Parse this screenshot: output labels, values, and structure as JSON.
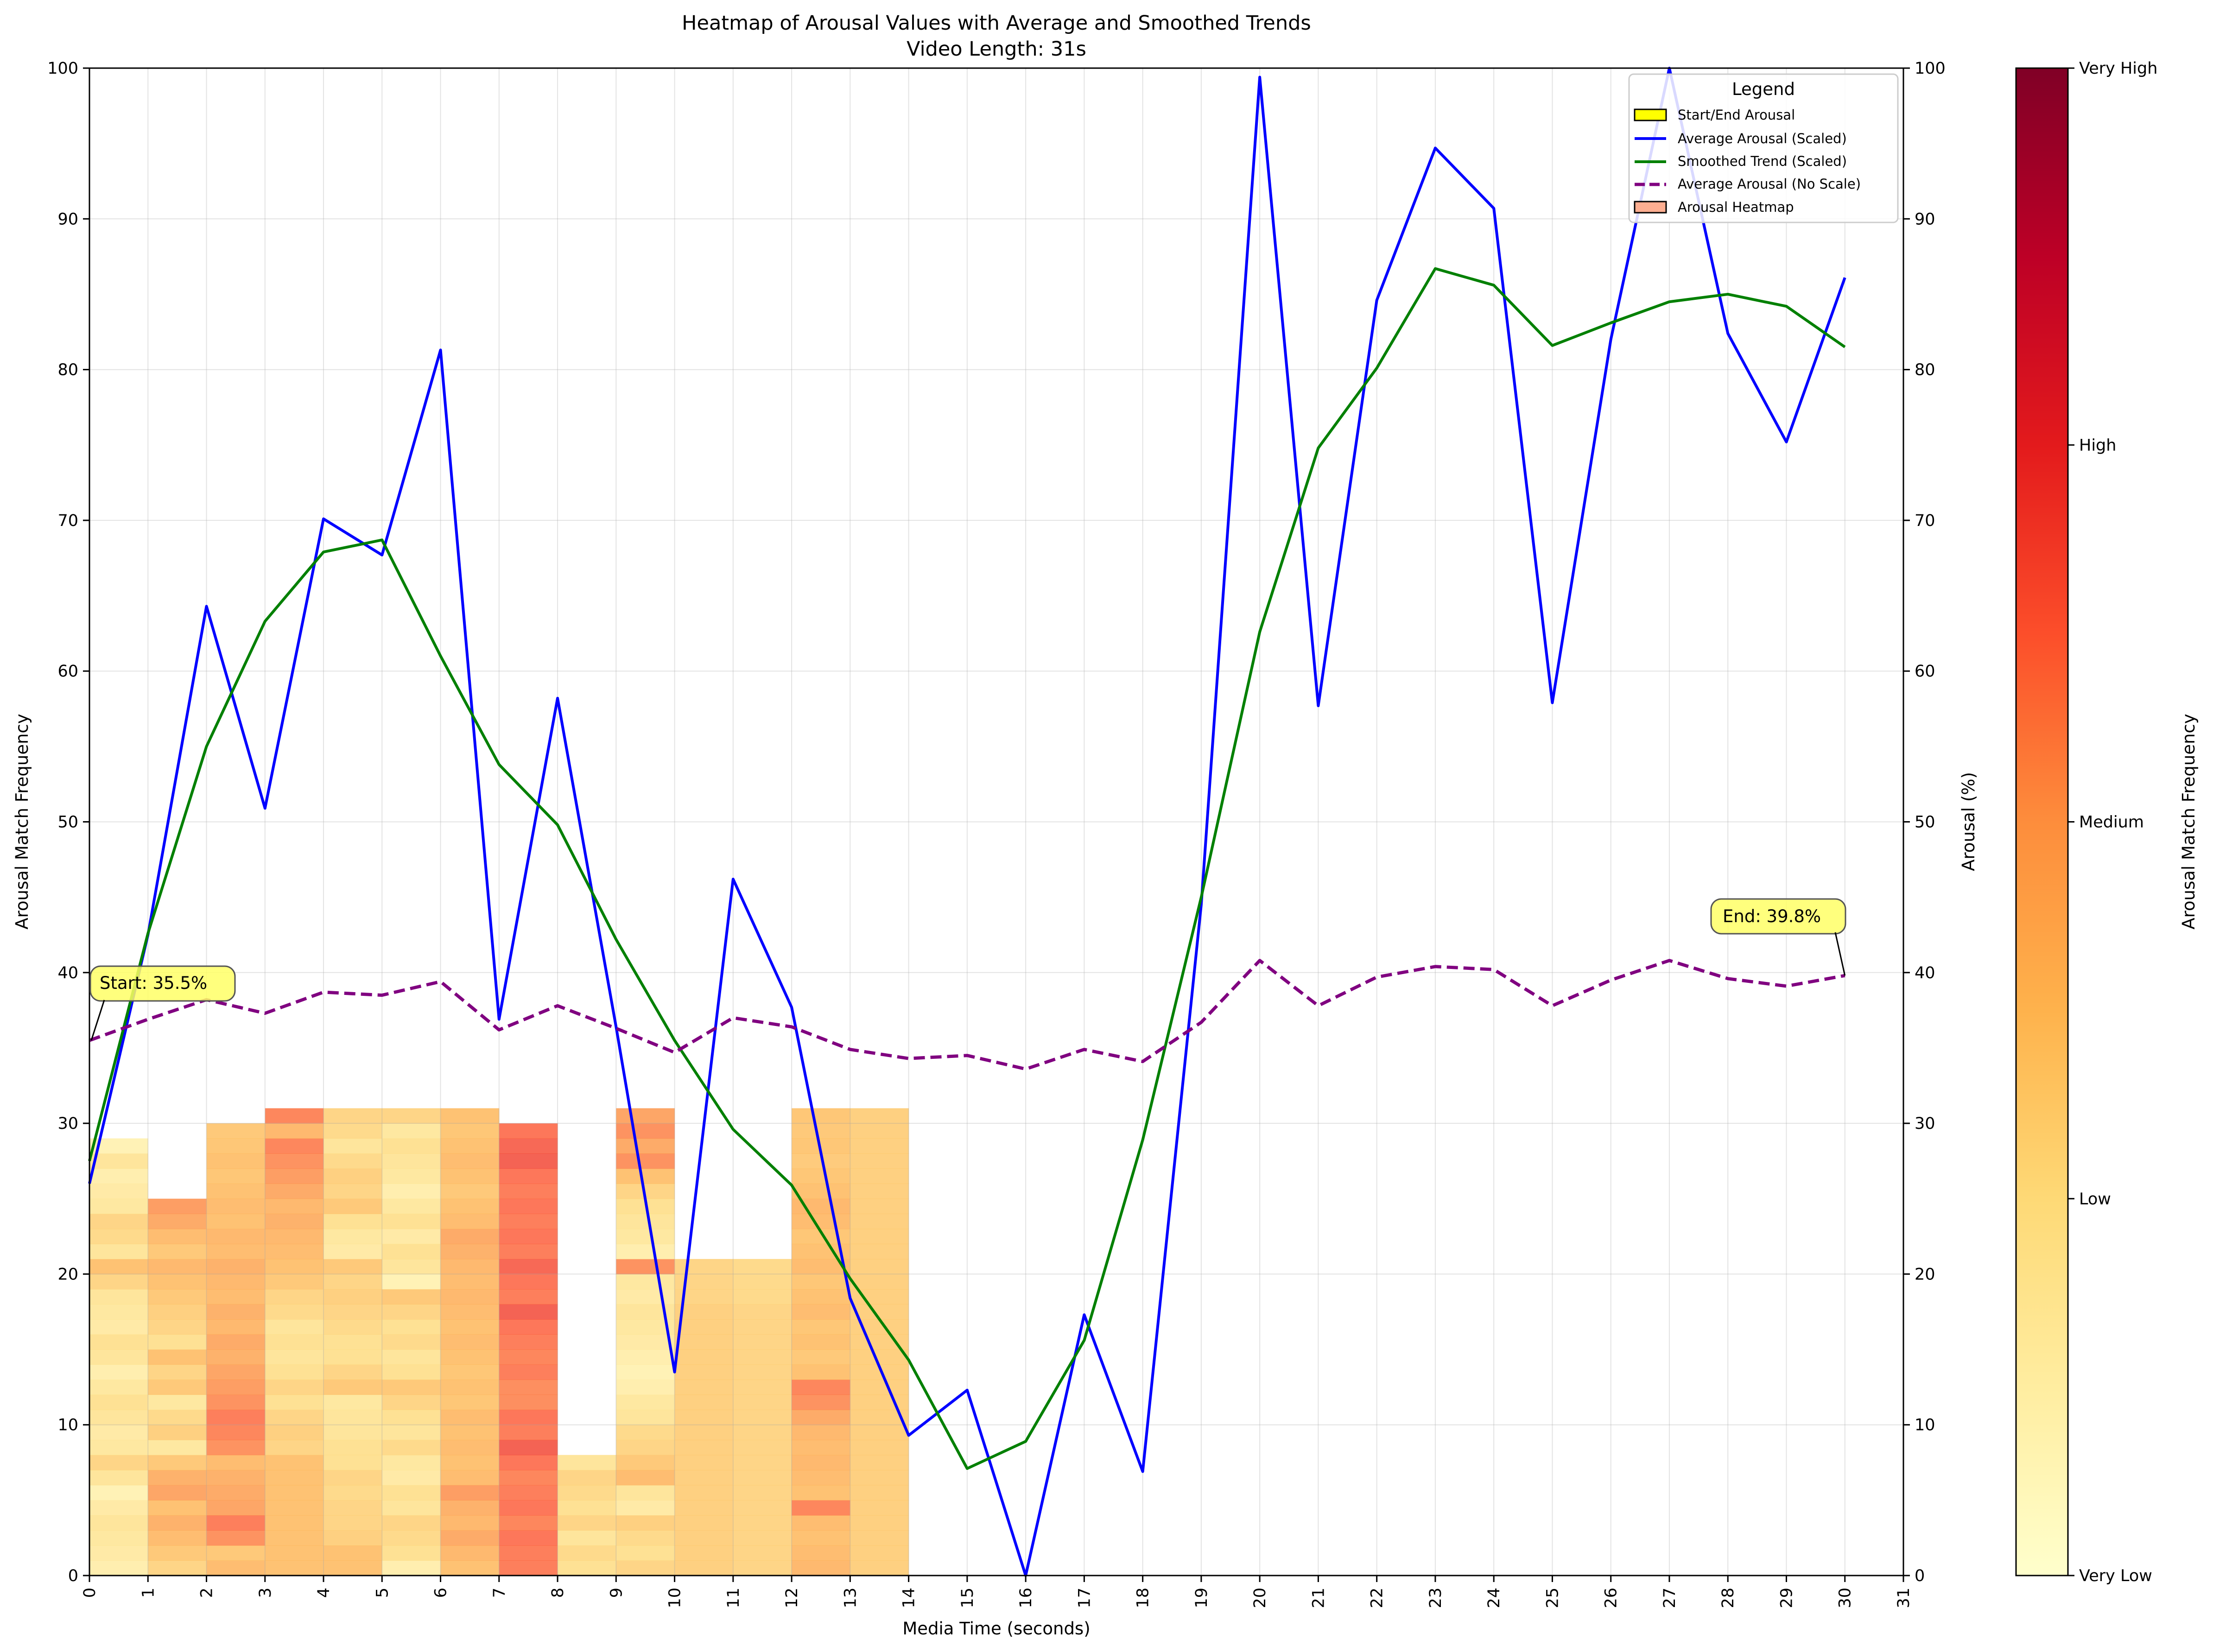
{
  "chart_data": {
    "type": "heatmap",
    "title": "Heatmap of Arousal Values with Average and Smoothed Trends",
    "subtitle": "Video Length: 31s",
    "xlabel": "Media Time (seconds)",
    "ylabel": "Arousal Match Frequency",
    "y2label": "Arousal (%)",
    "xlim": [
      0,
      31
    ],
    "ylim": [
      0,
      100
    ],
    "y2lim": [
      0,
      100
    ],
    "x_ticks": [
      "0",
      "1",
      "2",
      "3",
      "4",
      "5",
      "6",
      "7",
      "8",
      "9",
      "10",
      "11",
      "12",
      "13",
      "14",
      "15",
      "16",
      "17",
      "18",
      "19",
      "20",
      "21",
      "22",
      "23",
      "24",
      "25",
      "26",
      "27",
      "28",
      "29",
      "30",
      "31"
    ],
    "y_ticks": [
      "0",
      "10",
      "20",
      "30",
      "40",
      "50",
      "60",
      "70",
      "80",
      "90",
      "100"
    ],
    "y2_ticks": [
      "0",
      "10",
      "20",
      "30",
      "40",
      "50",
      "60",
      "70",
      "80",
      "90",
      "100"
    ],
    "grid": true,
    "legend_title": "Legend",
    "legend_position": "top-right",
    "legend": [
      {
        "label": "Start/End Arousal",
        "kind": "patch",
        "color": "#ffff00"
      },
      {
        "label": "Average Arousal (Scaled)",
        "kind": "line",
        "color": "#0000ff"
      },
      {
        "label": "Smoothed Trend (Scaled)",
        "kind": "line",
        "color": "#008000"
      },
      {
        "label": "Average Arousal (No Scale)",
        "kind": "dashed",
        "color": "#800080"
      },
      {
        "label": "Arousal Heatmap",
        "kind": "patch",
        "color": "#fdae91"
      }
    ],
    "colorbar": {
      "label": "Arousal Match Frequency",
      "ticks": [
        "Very Low",
        "Low",
        "Medium",
        "High",
        "Very High"
      ],
      "colors": [
        "#ffffcc",
        "#ffeda0",
        "#fed976",
        "#feb24c",
        "#fd8d3c",
        "#fc4e2a",
        "#e31a1c",
        "#bd0026",
        "#800026"
      ]
    },
    "series": [
      {
        "name": "Average Arousal (Scaled)",
        "color": "#0000ff",
        "x": [
          0,
          1,
          2,
          3,
          4,
          5,
          6,
          7,
          8,
          9,
          10,
          11,
          12,
          13,
          14,
          15,
          16,
          17,
          18,
          19,
          20,
          21,
          22,
          23,
          24,
          25,
          26,
          27,
          28,
          29,
          30
        ],
        "values": [
          26.0,
          42.5,
          64.3,
          50.9,
          70.1,
          67.7,
          81.3,
          36.9,
          58.2,
          36.4,
          13.5,
          46.2,
          37.7,
          18.4,
          9.3,
          12.3,
          0,
          17.3,
          6.9,
          44.5,
          99.4,
          57.7,
          84.6,
          94.7,
          90.7,
          57.9,
          82.0,
          100,
          82.4,
          75.2,
          86.1
        ]
      },
      {
        "name": "Smoothed Trend (Scaled)",
        "color": "#008000",
        "x": [
          0,
          1,
          2,
          3,
          4,
          5,
          6,
          7,
          8,
          9,
          10,
          11,
          12,
          13,
          14,
          15,
          16,
          17,
          18,
          19,
          20,
          21,
          22,
          23,
          24,
          25,
          26,
          27,
          28,
          29,
          30
        ],
        "values": [
          27.5,
          42.6,
          55.0,
          63.3,
          67.9,
          68.7,
          61.0,
          53.8,
          49.8,
          42.2,
          35.5,
          29.6,
          25.9,
          19.7,
          14.3,
          7.1,
          8.9,
          15.6,
          28.9,
          45.0,
          62.6,
          74.8,
          80.1,
          86.7,
          85.6,
          81.6,
          83.1,
          84.5,
          85.0,
          84.2,
          81.5
        ]
      },
      {
        "name": "Average Arousal (No Scale)",
        "color": "#800080",
        "dashed": true,
        "x": [
          0,
          1,
          2,
          3,
          4,
          5,
          6,
          7,
          8,
          9,
          10,
          11,
          12,
          13,
          14,
          15,
          16,
          17,
          18,
          19,
          20,
          21,
          22,
          23,
          24,
          25,
          26,
          27,
          28,
          29,
          30
        ],
        "values": [
          35.5,
          36.9,
          38.2,
          37.3,
          38.7,
          38.5,
          39.4,
          36.2,
          37.8,
          36.3,
          34.7,
          37.0,
          36.4,
          34.9,
          34.3,
          34.5,
          33.6,
          34.9,
          34.1,
          36.7,
          40.8,
          37.8,
          39.7,
          40.4,
          40.2,
          37.8,
          39.5,
          40.8,
          39.6,
          39.1,
          39.8
        ]
      }
    ],
    "annotations": [
      {
        "text": "Start: 35.5%",
        "x": 0,
        "y": 35.5
      },
      {
        "text": "End: 39.8%",
        "x": 30,
        "y": 39.8
      }
    ],
    "heatmap": {
      "columns": [
        {
          "x": 0,
          "height": 29,
          "levels": [
            0.15,
            0.18,
            0.2,
            0.22,
            0.18,
            0.12,
            0.22,
            0.3,
            0.2,
            0.18,
            0.22,
            0.25,
            0.2,
            0.15,
            0.22,
            0.25,
            0.18,
            0.2,
            0.22,
            0.3,
            0.38,
            0.22,
            0.28,
            0.3,
            0.2,
            0.18,
            0.15,
            0.22,
            0.12
          ]
        },
        {
          "x": 1,
          "height": 25,
          "levels": [
            0.3,
            0.35,
            0.4,
            0.45,
            0.38,
            0.5,
            0.45,
            0.35,
            0.2,
            0.32,
            0.28,
            0.2,
            0.35,
            0.3,
            0.38,
            0.25,
            0.3,
            0.32,
            0.35,
            0.38,
            0.42,
            0.35,
            0.4,
            0.48,
            0.52
          ]
        },
        {
          "x": 2,
          "height": 30,
          "levels": [
            0.4,
            0.35,
            0.55,
            0.6,
            0.5,
            0.48,
            0.45,
            0.4,
            0.55,
            0.58,
            0.6,
            0.55,
            0.52,
            0.5,
            0.45,
            0.48,
            0.42,
            0.45,
            0.4,
            0.42,
            0.45,
            0.4,
            0.42,
            0.38,
            0.4,
            0.38,
            0.36,
            0.38,
            0.36,
            0.35
          ]
        },
        {
          "x": 3,
          "height": 31,
          "levels": [
            0.38,
            0.38,
            0.38,
            0.38,
            0.38,
            0.38,
            0.38,
            0.38,
            0.3,
            0.32,
            0.3,
            0.25,
            0.3,
            0.25,
            0.22,
            0.25,
            0.22,
            0.28,
            0.3,
            0.35,
            0.38,
            0.4,
            0.42,
            0.45,
            0.42,
            0.48,
            0.52,
            0.55,
            0.58,
            0.42,
            0.58
          ]
        },
        {
          "x": 4,
          "height": 31,
          "levels": [
            0.38,
            0.38,
            0.32,
            0.3,
            0.3,
            0.28,
            0.3,
            0.25,
            0.25,
            0.22,
            0.22,
            0.2,
            0.35,
            0.3,
            0.25,
            0.25,
            0.28,
            0.3,
            0.32,
            0.3,
            0.35,
            0.18,
            0.2,
            0.25,
            0.35,
            0.3,
            0.32,
            0.28,
            0.22,
            0.28,
            0.3
          ]
        },
        {
          "x": 5,
          "height": 31,
          "levels": [
            0.15,
            0.25,
            0.28,
            0.3,
            0.22,
            0.25,
            0.18,
            0.2,
            0.28,
            0.22,
            0.25,
            0.3,
            0.35,
            0.25,
            0.22,
            0.28,
            0.25,
            0.3,
            0.35,
            0.12,
            0.22,
            0.25,
            0.18,
            0.25,
            0.2,
            0.15,
            0.2,
            0.22,
            0.25,
            0.2,
            0.3
          ]
        },
        {
          "x": 6,
          "height": 31,
          "levels": [
            0.38,
            0.42,
            0.48,
            0.42,
            0.45,
            0.52,
            0.4,
            0.38,
            0.4,
            0.38,
            0.4,
            0.36,
            0.38,
            0.36,
            0.38,
            0.4,
            0.38,
            0.4,
            0.42,
            0.4,
            0.42,
            0.45,
            0.48,
            0.4,
            0.38,
            0.35,
            0.38,
            0.4,
            0.38,
            0.36,
            0.38
          ]
        },
        {
          "x": 7,
          "height": 30,
          "levels": [
            0.6,
            0.6,
            0.62,
            0.58,
            0.62,
            0.6,
            0.58,
            0.62,
            0.68,
            0.6,
            0.62,
            0.56,
            0.56,
            0.6,
            0.58,
            0.6,
            0.62,
            0.68,
            0.6,
            0.62,
            0.66,
            0.6,
            0.62,
            0.6,
            0.62,
            0.6,
            0.62,
            0.68,
            0.66,
            0.62
          ]
        },
        {
          "x": 8,
          "height": 8,
          "levels": [
            0.25,
            0.28,
            0.22,
            0.3,
            0.25,
            0.28,
            0.3,
            0.22
          ]
        },
        {
          "x": 9,
          "height": 31,
          "levels": [
            0.3,
            0.25,
            0.28,
            0.32,
            0.18,
            0.22,
            0.4,
            0.35,
            0.3,
            0.28,
            0.22,
            0.2,
            0.15,
            0.12,
            0.15,
            0.18,
            0.2,
            0.22,
            0.18,
            0.2,
            0.55,
            0.15,
            0.2,
            0.22,
            0.25,
            0.3,
            0.38,
            0.55,
            0.48,
            0.55,
            0.5
          ]
        },
        {
          "x": 10,
          "height": 21,
          "levels": [
            0.32,
            0.32,
            0.32,
            0.32,
            0.32,
            0.32,
            0.32,
            0.32,
            0.32,
            0.32,
            0.32,
            0.32,
            0.32,
            0.32,
            0.32,
            0.32,
            0.32,
            0.32,
            0.3,
            0.3,
            0.3
          ]
        },
        {
          "x": 11,
          "height": 21,
          "levels": [
            0.3,
            0.3,
            0.3,
            0.3,
            0.3,
            0.3,
            0.3,
            0.3,
            0.3,
            0.3,
            0.3,
            0.3,
            0.3,
            0.3,
            0.3,
            0.3,
            0.3,
            0.3,
            0.28,
            0.28,
            0.28
          ]
        },
        {
          "x": 12,
          "height": 31,
          "levels": [
            0.42,
            0.4,
            0.38,
            0.4,
            0.58,
            0.38,
            0.4,
            0.42,
            0.4,
            0.42,
            0.48,
            0.55,
            0.58,
            0.38,
            0.35,
            0.38,
            0.36,
            0.4,
            0.38,
            0.36,
            0.4,
            0.38,
            0.36,
            0.4,
            0.42,
            0.38,
            0.36,
            0.34,
            0.36,
            0.35,
            0.36
          ]
        },
        {
          "x": 13,
          "height": 31,
          "levels": [
            0.32,
            0.32,
            0.32,
            0.32,
            0.32,
            0.32,
            0.32,
            0.32,
            0.32,
            0.32,
            0.32,
            0.32,
            0.32,
            0.32,
            0.32,
            0.32,
            0.32,
            0.32,
            0.32,
            0.32,
            0.32,
            0.32,
            0.32,
            0.32,
            0.32,
            0.32,
            0.32,
            0.32,
            0.32,
            0.32,
            0.32
          ]
        }
      ]
    }
  }
}
